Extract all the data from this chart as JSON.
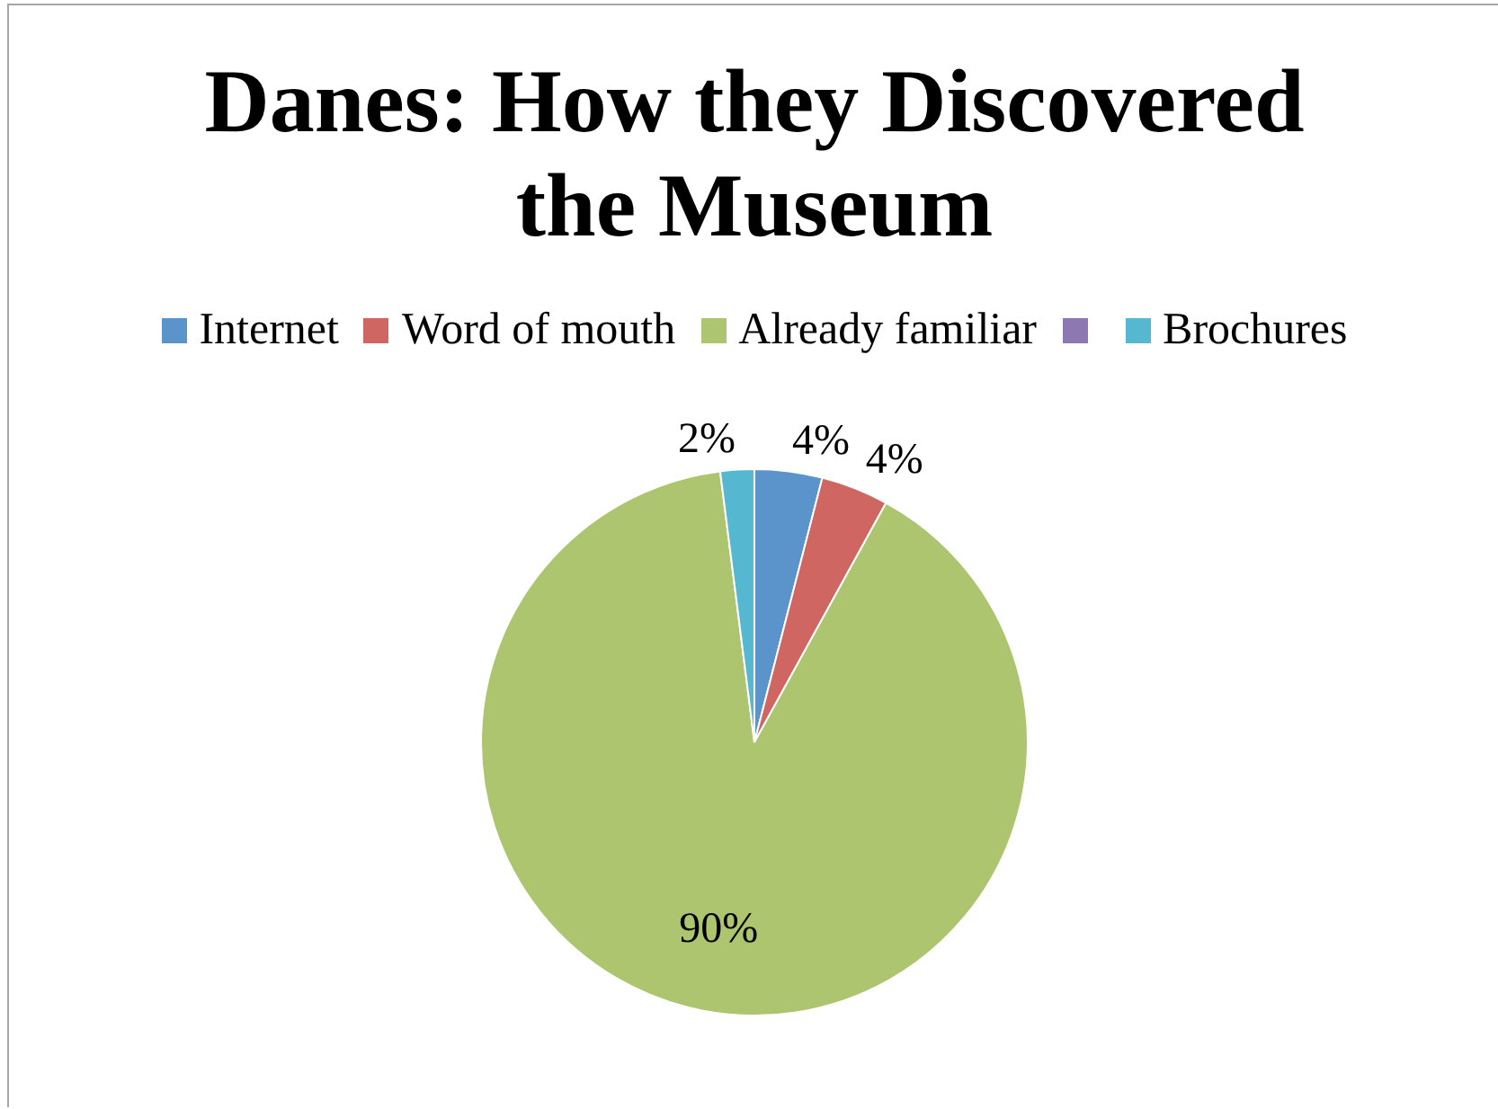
{
  "chart_data": {
    "type": "pie",
    "title": "Danes: How they Discovered the Museum",
    "categories": [
      "Internet",
      "Word of mouth",
      "Already familiar",
      null,
      "Brochures"
    ],
    "values": [
      4,
      4,
      90,
      0,
      2
    ],
    "colors": [
      "#5b93cb",
      "#cf6661",
      "#acc56e",
      "#8d78b3",
      "#56b8d0"
    ],
    "value_labels": [
      "4%",
      "4%",
      "90%",
      null,
      "2%"
    ],
    "legend": "top"
  }
}
